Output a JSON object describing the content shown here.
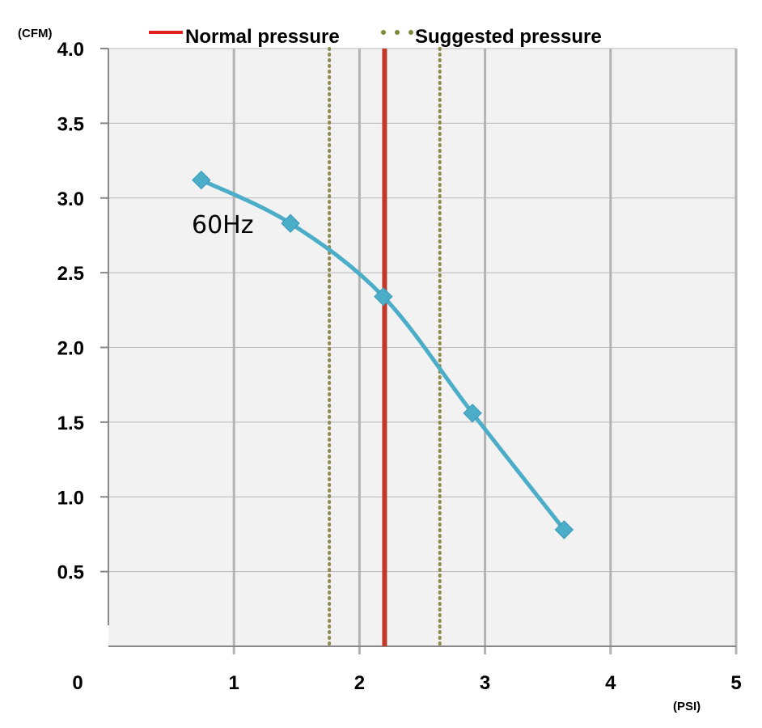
{
  "chart_data": {
    "type": "line",
    "x_unit": "(PSI)",
    "y_unit": "(CFM)",
    "xlim": [
      0,
      5
    ],
    "ylim": [
      0,
      4.0
    ],
    "x_ticks": [
      {
        "value": 0,
        "label": "0"
      },
      {
        "value": 1,
        "label": "1"
      },
      {
        "value": 2,
        "label": "2"
      },
      {
        "value": 3,
        "label": "3"
      },
      {
        "value": 4,
        "label": "4"
      },
      {
        "value": 5,
        "label": "5"
      }
    ],
    "y_ticks": [
      {
        "value": 0.5,
        "label": "0.5"
      },
      {
        "value": 1.0,
        "label": "1.0"
      },
      {
        "value": 1.5,
        "label": "1.5"
      },
      {
        "value": 2.0,
        "label": "2.0"
      },
      {
        "value": 2.5,
        "label": "2.5"
      },
      {
        "value": 3.0,
        "label": "3.0"
      },
      {
        "value": 3.5,
        "label": "3.5"
      },
      {
        "value": 4.0,
        "label": "4.0"
      }
    ],
    "grid": true,
    "series": [
      {
        "name": "60Hz",
        "color": "#4badc8",
        "marker": "diamond",
        "x": [
          0.74,
          1.45,
          2.19,
          2.9,
          3.63
        ],
        "y": [
          3.12,
          2.83,
          2.34,
          1.56,
          0.78
        ]
      }
    ],
    "reference_lines": [
      {
        "name": "Normal pressure",
        "x": 2.2,
        "color": "#c0392b",
        "style": "solid"
      },
      {
        "name": "Suggested pressure",
        "x": 1.76,
        "color": "#8b8b4e",
        "style": "dotted"
      },
      {
        "name": "Suggested pressure",
        "x": 2.64,
        "color": "#8b8b4e",
        "style": "dotted"
      }
    ],
    "legend": {
      "placement": "top",
      "entries": [
        {
          "label": "Normal pressure",
          "color": "#e0201b",
          "style": "solid"
        },
        {
          "label": "Suggested pressure",
          "color": "#7a8a3a",
          "style": "dotted"
        }
      ]
    },
    "annotations": [
      {
        "text": "60Hz"
      }
    ]
  }
}
